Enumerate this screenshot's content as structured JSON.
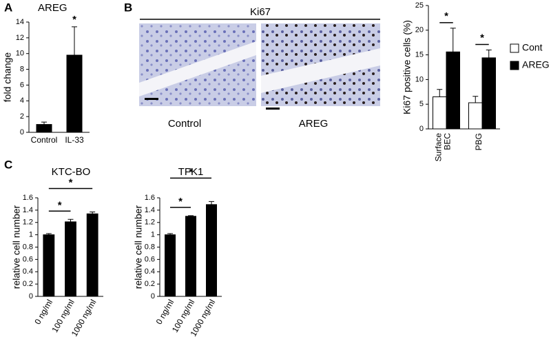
{
  "figure": {
    "panel_labels": [
      "A",
      "B",
      "C"
    ],
    "image_title": "Ki67",
    "image_captions": [
      "Control",
      "AREG"
    ]
  },
  "chart_data": [
    {
      "type": "bar",
      "title": "AREG",
      "y_label": "fold change",
      "categories": [
        "Control",
        "IL-33"
      ],
      "values": [
        1,
        9.8
      ],
      "errors": [
        0.3,
        3.6
      ],
      "color": "#000000",
      "ylim": [
        0,
        14
      ],
      "yticks": [
        0,
        2,
        4,
        6,
        8,
        10,
        12,
        14
      ],
      "annotations": [
        "*"
      ]
    },
    {
      "type": "grouped-bar",
      "y_label": "Ki67 positive cells (%)",
      "categories": [
        "Surface BEC",
        "PBG"
      ],
      "series": [
        {
          "name": "Cont",
          "color": "#ffffff",
          "values": [
            6.5,
            5.3
          ],
          "errors": [
            1.5,
            1.3
          ]
        },
        {
          "name": "AREG",
          "color": "#000000",
          "values": [
            15.6,
            14.4
          ],
          "errors": [
            4.8,
            1.6
          ]
        }
      ],
      "ylim": [
        0,
        25
      ],
      "yticks": [
        0,
        5,
        10,
        15,
        20,
        25
      ],
      "annotations": [
        "*",
        "*"
      ],
      "legend": "right"
    },
    {
      "type": "bar",
      "title": "KTC-BO",
      "y_label": "relative cell number",
      "categories": [
        "0 ng/ml",
        "100 ng/ml",
        "1000 ng/ml"
      ],
      "values": [
        1.0,
        1.21,
        1.34
      ],
      "errors": [
        0.02,
        0.04,
        0.03
      ],
      "color": "#000000",
      "ylim": [
        0,
        1.6
      ],
      "yticks": [
        0,
        0.2,
        0.4,
        0.6,
        0.8,
        1,
        1.2,
        1.4,
        1.6
      ],
      "annotations": [
        "*",
        "*"
      ]
    },
    {
      "type": "bar",
      "title": "TFK1",
      "y_label": "relative cell number",
      "categories": [
        "0 ng/ml",
        "100 ng/ml",
        "1000 ng/ml"
      ],
      "values": [
        1.0,
        1.3,
        1.49
      ],
      "errors": [
        0.02,
        0.01,
        0.05
      ],
      "color": "#000000",
      "ylim": [
        0,
        1.6
      ],
      "yticks": [
        0,
        0.2,
        0.4,
        0.6,
        0.8,
        1,
        1.2,
        1.4,
        1.6
      ],
      "annotations": [
        "*",
        "*"
      ]
    }
  ]
}
